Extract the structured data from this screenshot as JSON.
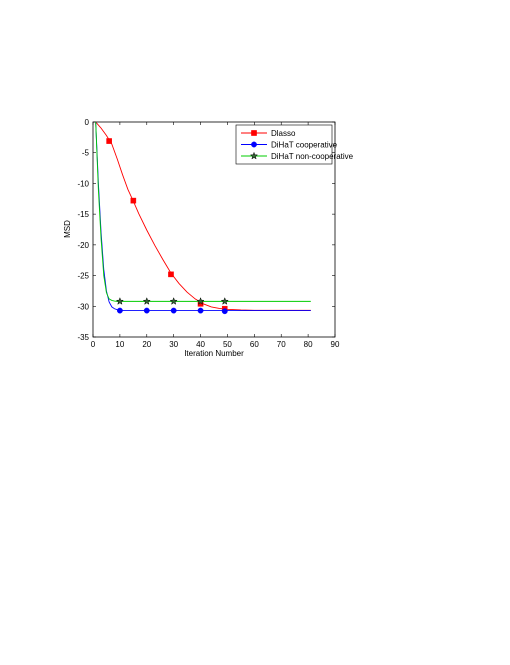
{
  "chart_data": {
    "type": "line",
    "title": "",
    "xlabel": "Iteration Number",
    "ylabel": "MSD",
    "xlim": [
      0,
      90
    ],
    "ylim": [
      -35,
      0
    ],
    "xticks": [
      0,
      10,
      20,
      30,
      40,
      50,
      60,
      70,
      80,
      90
    ],
    "yticks": [
      0,
      -5,
      -10,
      -15,
      -20,
      -25,
      -30,
      -35
    ],
    "grid": false,
    "legend_position": "top-right",
    "series": [
      {
        "name": "Dlasso",
        "color": "#ff0000",
        "marker": "square",
        "x": [
          1,
          3,
          5,
          7,
          9,
          11,
          13,
          15,
          17,
          20,
          23,
          26,
          29,
          32,
          35,
          38,
          41,
          44,
          47,
          50,
          55,
          60,
          65,
          70,
          75,
          81
        ],
        "y": [
          0,
          -1.0,
          -2.2,
          -3.6,
          -6.0,
          -8.6,
          -11.0,
          -12.9,
          -14.9,
          -17.6,
          -20.1,
          -22.4,
          -24.6,
          -26.3,
          -27.7,
          -28.8,
          -29.6,
          -30.1,
          -30.35,
          -30.5,
          -30.6,
          -30.65,
          -30.65,
          -30.65,
          -30.65,
          -30.65
        ],
        "marker_x": [
          6,
          15,
          29,
          40,
          49
        ],
        "marker_y": [
          -3.1,
          -12.8,
          -24.8,
          -29.6,
          -30.4
        ]
      },
      {
        "name": "DiHaT cooperative",
        "color": "#0000ff",
        "marker": "circle",
        "x": [
          1,
          2,
          3,
          4,
          5,
          6,
          7,
          8,
          9,
          10,
          12,
          15,
          20,
          30,
          40,
          50,
          60,
          70,
          81
        ],
        "y": [
          0,
          -10,
          -18,
          -24,
          -27.5,
          -29.3,
          -30.1,
          -30.4,
          -30.55,
          -30.65,
          -30.7,
          -30.7,
          -30.7,
          -30.7,
          -30.7,
          -30.7,
          -30.7,
          -30.7,
          -30.7
        ],
        "marker_x": [
          10,
          20,
          30,
          40,
          49
        ],
        "marker_y": [
          -30.7,
          -30.7,
          -30.7,
          -30.7,
          -30.8
        ]
      },
      {
        "name": "DiHaT non-cooperative",
        "color": "#00cc00",
        "marker": "star",
        "x": [
          1,
          2,
          3,
          4,
          5,
          6,
          7,
          8,
          9,
          12,
          15,
          20,
          30,
          40,
          50,
          60,
          70,
          81
        ],
        "y": [
          0,
          -11,
          -19,
          -25,
          -27.8,
          -28.8,
          -29.05,
          -29.15,
          -29.2,
          -29.2,
          -29.2,
          -29.2,
          -29.2,
          -29.2,
          -29.2,
          -29.2,
          -29.2,
          -29.2
        ],
        "marker_x": [
          10,
          20,
          30,
          40,
          49
        ],
        "marker_y": [
          -29.2,
          -29.2,
          -29.2,
          -29.2,
          -29.2
        ],
        "marker_fill": "#336633"
      }
    ]
  }
}
